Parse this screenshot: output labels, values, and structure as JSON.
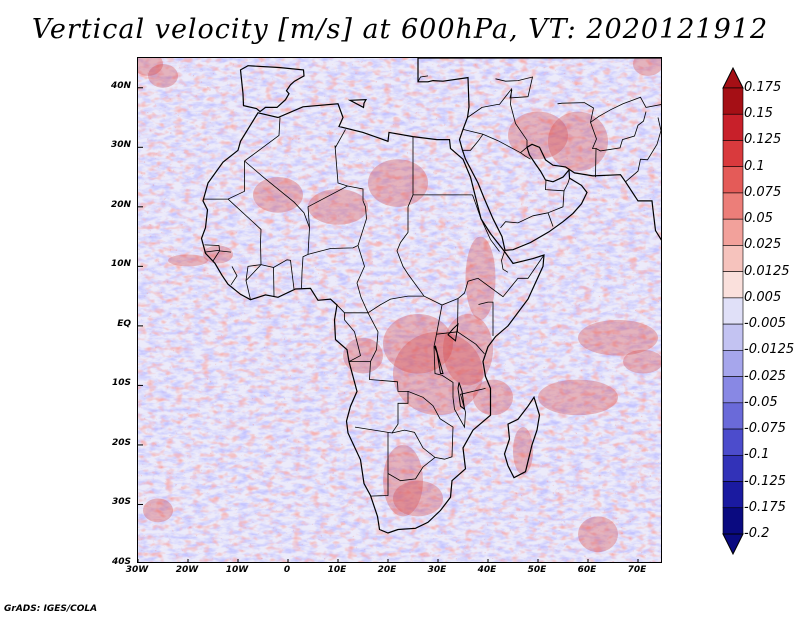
{
  "title": "Vertical velocity [m/s] at 600hPa, VT: 2020121912",
  "credit": "GrADS: IGES/COLA",
  "map": {
    "lon_range": [
      -30,
      75
    ],
    "lat_range": [
      -40,
      45
    ],
    "lat_ticks": [
      {
        "value": 40,
        "label": "40N"
      },
      {
        "value": 30,
        "label": "30N"
      },
      {
        "value": 20,
        "label": "20N"
      },
      {
        "value": 10,
        "label": "10N"
      },
      {
        "value": 0,
        "label": "EQ"
      },
      {
        "value": -10,
        "label": "10S"
      },
      {
        "value": -20,
        "label": "20S"
      },
      {
        "value": -30,
        "label": "30S"
      },
      {
        "value": -40,
        "label": "40S"
      }
    ],
    "lon_ticks": [
      {
        "value": -30,
        "label": "30W"
      },
      {
        "value": -20,
        "label": "20W"
      },
      {
        "value": -10,
        "label": "10W"
      },
      {
        "value": 0,
        "label": "0"
      },
      {
        "value": 10,
        "label": "10E"
      },
      {
        "value": 20,
        "label": "20E"
      },
      {
        "value": 30,
        "label": "30E"
      },
      {
        "value": 40,
        "label": "40E"
      },
      {
        "value": 50,
        "label": "50E"
      },
      {
        "value": 60,
        "label": "60E"
      },
      {
        "value": 70,
        "label": "70E"
      }
    ]
  },
  "colorbar": {
    "levels": [
      "0.175",
      "0.15",
      "0.125",
      "0.1",
      "0.075",
      "0.05",
      "0.025",
      "0.0125",
      "0.005",
      "-0.005",
      "-0.0125",
      "-0.025",
      "-0.05",
      "-0.075",
      "-0.1",
      "-0.125",
      "-0.175",
      "-0.2"
    ],
    "colors": [
      "#a50f15",
      "#c8202a",
      "#d93a3d",
      "#e45b58",
      "#ec7e79",
      "#f2a19b",
      "#f6c3bd",
      "#fae0dc",
      "#ffffff",
      "#e0e0f8",
      "#c3c3f2",
      "#a6a6ec",
      "#8888e4",
      "#6a6ad9",
      "#4c4ccc",
      "#3232b8",
      "#1a1aa0",
      "#0a0a80"
    ]
  }
}
